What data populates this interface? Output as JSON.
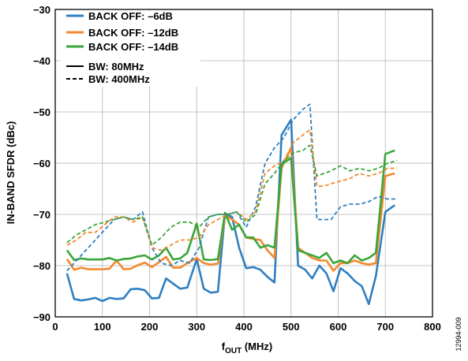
{
  "figure_id": "12994-009",
  "chart_data": {
    "type": "line",
    "xlabel_main": "f",
    "xlabel_sub": "OUT",
    "xlabel_unit": " (MHz)",
    "ylabel": "IN-BAND SFDR (dBc)",
    "xlim": [
      0,
      800
    ],
    "ylim": [
      -90,
      -30
    ],
    "x_ticks": [
      "0",
      "100",
      "200",
      "300",
      "400",
      "500",
      "600",
      "700",
      "800"
    ],
    "y_ticks": [
      "−30",
      "−40",
      "−50",
      "−60",
      "−70",
      "−80",
      "−90"
    ],
    "grid": true,
    "legend_position": "top-left",
    "legend": {
      "colors": [
        {
          "label": "BACK OFF: –6dB",
          "color": "#2f7fc1"
        },
        {
          "label": "BACK OFF: –12dB",
          "color": "#f28a30"
        },
        {
          "label": "BACK OFF: –14dB",
          "color": "#3aa53a"
        }
      ],
      "styles": [
        {
          "label": "BW: 80MHz",
          "dash": "solid"
        },
        {
          "label": "BW: 400MHz",
          "dash": "dashed"
        }
      ]
    },
    "series": [
      {
        "backoff": "BACK OFF: –6dB",
        "bandwidth": "BW: 80MHz",
        "color": "#2f7fc1",
        "dash": "solid",
        "x": [
          25,
          40,
          55,
          70,
          85,
          100,
          115,
          130,
          145,
          160,
          175,
          190,
          205,
          220,
          235,
          250,
          265,
          280,
          300,
          315,
          330,
          345,
          360,
          375,
          390,
          405,
          420,
          435,
          450,
          465,
          480,
          500,
          515,
          530,
          545,
          560,
          575,
          590,
          605,
          620,
          635,
          650,
          665,
          680,
          700,
          720
        ],
        "y": [
          -81.5,
          -86.5,
          -86.8,
          -86.6,
          -86.3,
          -86.9,
          -86.3,
          -86.5,
          -86.4,
          -84.6,
          -84.5,
          -84.8,
          -86.4,
          -86.3,
          -82.5,
          -83.5,
          -84.5,
          -84.3,
          -78.7,
          -84.5,
          -85.3,
          -85.1,
          -69.8,
          -70.5,
          -76.5,
          -80.5,
          -80.3,
          -80.8,
          -82.2,
          -83.3,
          -54.5,
          -51.5,
          -80.0,
          -80.8,
          -82.5,
          -80.0,
          -81.5,
          -85.0,
          -80.5,
          -81.5,
          -83.0,
          -84.0,
          -87.5,
          -82.0,
          -69.5,
          -68.2
        ]
      },
      {
        "backoff": "BACK OFF: –12dB",
        "bandwidth": "BW: 80MHz",
        "color": "#f28a30",
        "dash": "solid",
        "x": [
          25,
          40,
          55,
          70,
          85,
          100,
          115,
          130,
          145,
          160,
          175,
          190,
          205,
          220,
          235,
          250,
          265,
          280,
          300,
          315,
          330,
          345,
          360,
          375,
          390,
          405,
          420,
          435,
          450,
          465,
          480,
          500,
          515,
          530,
          545,
          560,
          575,
          590,
          605,
          620,
          635,
          650,
          665,
          680,
          700,
          720
        ],
        "y": [
          -78.7,
          -80.8,
          -80.4,
          -80.7,
          -80.7,
          -80.7,
          -80.6,
          -79.0,
          -80.7,
          -80.6,
          -79.9,
          -79.4,
          -80.3,
          -79.3,
          -78.3,
          -80.4,
          -80.4,
          -79.5,
          -78.5,
          -79.5,
          -79.8,
          -79.6,
          -70.2,
          -71.0,
          -72.0,
          -74.5,
          -74.8,
          -75.0,
          -77.0,
          -78.5,
          -61.0,
          -57.0,
          -76.5,
          -77.5,
          -78.5,
          -79.0,
          -79.0,
          -81.0,
          -79.5,
          -79.5,
          -79.0,
          -79.5,
          -79.8,
          -79.5,
          -62.5,
          -62.0
        ]
      },
      {
        "backoff": "BACK OFF: –14dB",
        "bandwidth": "BW: 80MHz",
        "color": "#3aa53a",
        "dash": "solid",
        "x": [
          25,
          40,
          55,
          70,
          85,
          100,
          115,
          130,
          145,
          160,
          175,
          190,
          205,
          220,
          235,
          250,
          265,
          280,
          300,
          315,
          330,
          345,
          360,
          375,
          390,
          405,
          420,
          435,
          450,
          465,
          480,
          500,
          515,
          530,
          545,
          560,
          575,
          590,
          605,
          620,
          635,
          650,
          665,
          680,
          700,
          720
        ],
        "y": [
          -77.0,
          -78.9,
          -78.6,
          -78.8,
          -78.8,
          -78.8,
          -78.5,
          -79.0,
          -78.7,
          -78.6,
          -78.2,
          -78.0,
          -78.8,
          -78.0,
          -76.5,
          -78.8,
          -78.6,
          -77.5,
          -71.8,
          -78.8,
          -78.9,
          -78.7,
          -69.7,
          -73.0,
          -72.0,
          -74.5,
          -74.5,
          -76.5,
          -76.0,
          -76.5,
          -60.2,
          -59.0,
          -77.0,
          -77.5,
          -78.0,
          -78.5,
          -77.5,
          -79.5,
          -79.0,
          -79.5,
          -78.0,
          -79.0,
          -78.5,
          -77.5,
          -58.2,
          -57.5
        ]
      },
      {
        "backoff": "BACK OFF: –6dB",
        "bandwidth": "BW: 400MHz",
        "color": "#2f7fc1",
        "dash": "dashed",
        "x": [
          25,
          45,
          65,
          85,
          105,
          125,
          145,
          165,
          185,
          205,
          225,
          245,
          265,
          285,
          305,
          325,
          345,
          365,
          385,
          405,
          425,
          445,
          465,
          485,
          505,
          525,
          540,
          555,
          570,
          585,
          605,
          625,
          645,
          665,
          685,
          705,
          725
        ],
        "y": [
          -81.0,
          -79.0,
          -77.0,
          -75.0,
          -73.0,
          -71.0,
          -70.5,
          -71.0,
          -69.5,
          -76.5,
          -79.5,
          -80.0,
          -79.0,
          -79.5,
          -76.5,
          -70.5,
          -70.0,
          -70.0,
          -69.5,
          -72.5,
          -68.5,
          -60.0,
          -57.0,
          -55.0,
          -51.5,
          -49.5,
          -48.5,
          -71.0,
          -71.0,
          -71.0,
          -68.5,
          -68.0,
          -68.0,
          -67.5,
          -66.5,
          -67.0,
          -67.0
        ]
      },
      {
        "backoff": "BACK OFF: –12dB",
        "bandwidth": "BW: 400MHz",
        "color": "#f28a30",
        "dash": "dashed",
        "x": [
          25,
          45,
          65,
          85,
          105,
          125,
          145,
          165,
          185,
          205,
          225,
          245,
          265,
          285,
          305,
          325,
          345,
          365,
          385,
          405,
          425,
          445,
          465,
          485,
          505,
          525,
          540,
          555,
          570,
          585,
          605,
          625,
          645,
          665,
          685,
          705,
          725
        ],
        "y": [
          -76.0,
          -75.0,
          -73.5,
          -73.5,
          -72.0,
          -70.5,
          -70.5,
          -71.5,
          -70.5,
          -76.5,
          -77.0,
          -76.0,
          -75.0,
          -75.0,
          -74.5,
          -72.0,
          -71.0,
          -70.0,
          -69.5,
          -71.0,
          -69.5,
          -62.0,
          -60.5,
          -59.5,
          -56.0,
          -54.5,
          -53.5,
          -64.5,
          -64.5,
          -64.0,
          -63.5,
          -63.0,
          -62.0,
          -62.5,
          -62.0,
          -61.0,
          -61.0
        ]
      },
      {
        "backoff": "BACK OFF: –14dB",
        "bandwidth": "BW: 400MHz",
        "color": "#3aa53a",
        "dash": "dashed",
        "x": [
          25,
          45,
          65,
          85,
          105,
          125,
          145,
          165,
          185,
          205,
          225,
          245,
          265,
          285,
          305,
          325,
          345,
          365,
          385,
          405,
          425,
          445,
          465,
          485,
          505,
          525,
          540,
          555,
          570,
          585,
          605,
          625,
          645,
          665,
          685,
          705,
          725
        ],
        "y": [
          -75.5,
          -74.0,
          -73.0,
          -72.0,
          -71.5,
          -71.0,
          -70.5,
          -71.0,
          -70.5,
          -76.0,
          -74.5,
          -72.5,
          -71.5,
          -71.5,
          -72.5,
          -70.5,
          -70.0,
          -70.0,
          -69.5,
          -71.5,
          -70.0,
          -64.0,
          -62.0,
          -59.5,
          -58.0,
          -57.5,
          -56.5,
          -62.5,
          -62.0,
          -61.5,
          -60.5,
          -61.5,
          -61.0,
          -61.5,
          -61.0,
          -60.0,
          -59.5
        ]
      }
    ]
  }
}
